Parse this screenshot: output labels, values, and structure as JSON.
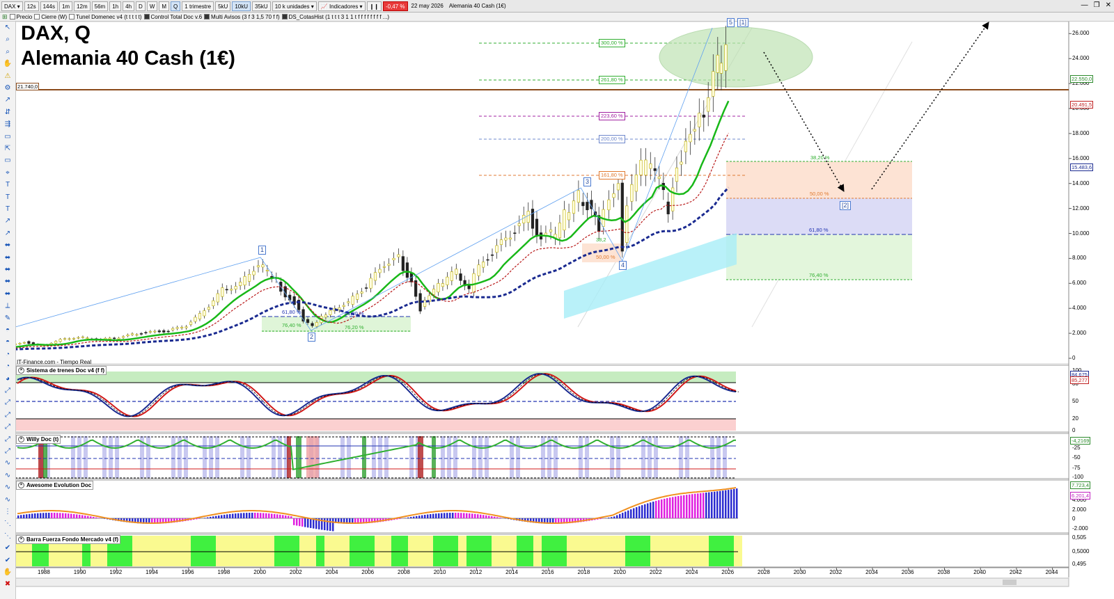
{
  "toolbar": {
    "symbol": "DAX",
    "timeframes": [
      "12s",
      "144s",
      "1m",
      "12m",
      "56m",
      "1h",
      "4h",
      "D",
      "W",
      "M",
      "Q"
    ],
    "period": "1 trimestre",
    "units": [
      "5kU",
      "10kU",
      "35kU"
    ],
    "units_label": "10 k unidades",
    "indicators_label": "Indicadores",
    "change": "-0,47 %",
    "date": "22 may 2026",
    "instrument": "Alemania 40 Cash (1€)"
  },
  "studies": [
    "Precio",
    "Cierre (W)",
    "Tunel Domenec v4 (t t t t t)",
    "Control Total Doc v.6",
    "Multi Avisos (3 f 3 1,5 70 f f)",
    "DS_CotasHist (1 t t t 3 1 1 t f f f f f f f f ...)"
  ],
  "chart": {
    "title_line1": "DAX, Q",
    "title_line2": "Alemania 40 Cash (1€)",
    "source": "IT-Finance.com - Tiempo Real",
    "hline_label": "21.740,0",
    "price_axis": [
      "26.000",
      "24.000",
      "22.000",
      "20.000",
      "18.000",
      "16.000",
      "14.000",
      "12.000",
      "10.000",
      "8.000",
      "6.000",
      "4.000",
      "2.000",
      "0"
    ],
    "price_tags": [
      {
        "text": "22.550,0",
        "color": "#2c8a2c"
      },
      {
        "text": "20.491,5",
        "color": "#c02020"
      },
      {
        "text": "15.483,6",
        "color": "#1a2a90"
      }
    ],
    "fib_upper": [
      {
        "text": "300,00 %",
        "color": "#2fae2f"
      },
      {
        "text": "261,80 %",
        "color": "#2fae2f"
      },
      {
        "text": "223,60 %",
        "color": "#a020a0"
      },
      {
        "text": "200,00 %",
        "color": "#6f88cc"
      },
      {
        "text": "161,80 %",
        "color": "#e07a30"
      }
    ],
    "fib_right": [
      {
        "text": "38,20 %",
        "color": "#2fae2f"
      },
      {
        "text": "50,00 %",
        "color": "#e07a30"
      },
      {
        "text": "61,80 %",
        "color": "#2033b0"
      },
      {
        "text": "76,40 %",
        "color": "#2fae2f"
      }
    ],
    "fib_left": [
      {
        "text": "61,80 %",
        "color": "#2033b0"
      },
      {
        "text": "61,80 %",
        "color": "#2033b0"
      },
      {
        "text": "76,40 %",
        "color": "#2fae2f"
      },
      {
        "text": "76,20 %",
        "color": "#2fae2f"
      }
    ],
    "fib_mid": [
      {
        "text": "38,2",
        "color": "#2fae2f"
      },
      {
        "text": "50,00 %",
        "color": "#e07a30"
      }
    ],
    "waves": [
      "1",
      "2",
      "3",
      "4",
      "5",
      "[1]",
      "[2]"
    ],
    "x_axis": [
      "1988",
      "1990",
      "1992",
      "1994",
      "1996",
      "1998",
      "2000",
      "2002",
      "2004",
      "2006",
      "2008",
      "2010",
      "2012",
      "2014",
      "2016",
      "2018",
      "2020",
      "2022",
      "2024",
      "2026",
      "2028",
      "2030",
      "2032",
      "2034",
      "2036",
      "2038",
      "2040",
      "2042",
      "2044"
    ]
  },
  "panes": [
    {
      "title": "Sistema de trenes Doc v4 (f f)",
      "axis": [
        "100",
        "80",
        "50",
        "20",
        "0"
      ],
      "tags": [
        "84,675",
        "85,277"
      ]
    },
    {
      "title": "Willy Doc (t)",
      "axis": [
        "0",
        "-25",
        "-50",
        "-75",
        "-100"
      ],
      "tags": [
        "-4,2169"
      ]
    },
    {
      "title": "Awesome Evolution Doc",
      "axis": [
        "4.000",
        "2.000",
        "0",
        "-2.000"
      ],
      "tags": [
        "7.723,4",
        "6.201,4"
      ]
    },
    {
      "title": "Barra Fuerza Fondo Mercado v4 (f)",
      "axis": [
        "0,505",
        "0,5000",
        "0,495"
      ],
      "tags": []
    }
  ]
}
